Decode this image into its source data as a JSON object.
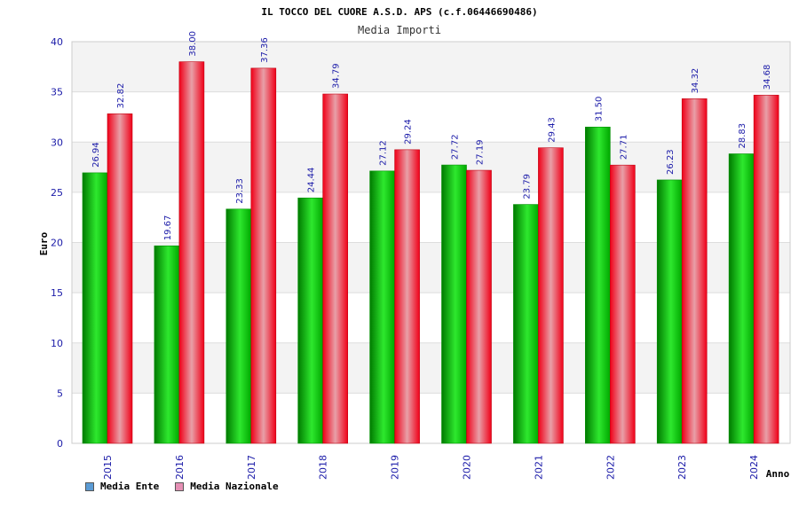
{
  "chart_data": {
    "type": "bar",
    "title": "IL TOCCO DEL CUORE A.S.D. APS (c.f.06446690486)",
    "subtitle": "Media Importi",
    "xlabel": "Anno",
    "ylabel": "Euro",
    "ylim": [
      0,
      40
    ],
    "yticks": [
      0,
      5,
      10,
      15,
      20,
      25,
      30,
      35,
      40
    ],
    "grid": true,
    "legend_position": "bottom-left",
    "categories": [
      "2015",
      "2016",
      "2017",
      "2018",
      "2019",
      "2020",
      "2021",
      "2022",
      "2023",
      "2024"
    ],
    "series": [
      {
        "name": "Media Ente",
        "color": "#00b000",
        "legend_color": "#5b9bd5",
        "values": [
          26.94,
          19.67,
          23.33,
          24.44,
          27.12,
          27.72,
          23.79,
          31.5,
          26.23,
          28.83
        ],
        "labels": [
          "26.94",
          "19.67",
          "23.33",
          "24.44",
          "27.12",
          "27.72",
          "23.79",
          "31.50",
          "26.23",
          "28.83"
        ]
      },
      {
        "name": "Media Nazionale",
        "color": "#f00020",
        "legend_color": "#e58fb4",
        "values": [
          32.82,
          38.0,
          37.36,
          34.79,
          29.24,
          27.19,
          29.43,
          27.71,
          34.32,
          34.68
        ],
        "labels": [
          "32.82",
          "38.00",
          "37.36",
          "34.79",
          "29.24",
          "27.19",
          "29.43",
          "27.71",
          "34.32",
          "34.68"
        ]
      }
    ]
  }
}
